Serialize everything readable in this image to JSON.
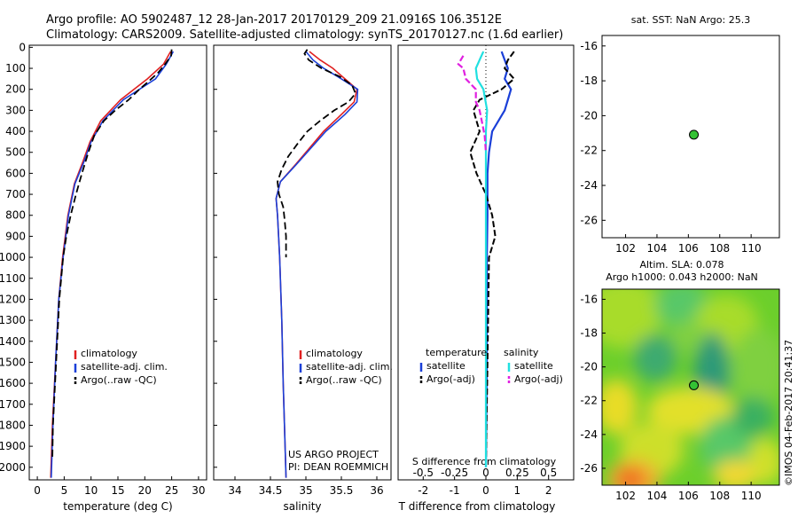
{
  "header": {
    "line1": "Argo profile: AO 5902487_12 28-Jan-2017 20170129_209 21.0916S 106.3512E",
    "line2": "Climatology: CARS2009. Satellite-adjusted climatology: synTS_20170127.nc (1.6d earlier)"
  },
  "footer_credit": "©IMOS 04-Feb-2017 20:41:37",
  "colors": {
    "climatology": "#e02020",
    "satellite": "#1a3fd8",
    "argo": "#000000",
    "sal_satellite": "#20e0e0",
    "sal_argo": "#e020e0",
    "marker": "#34c234"
  },
  "chart_data": [
    {
      "id": "temperature",
      "type": "line",
      "xlabel": "temperature (deg C)",
      "ylabel": "",
      "xlim": [
        -1.5,
        31.5
      ],
      "ylim": [
        2060,
        0
      ],
      "xticks": [
        "0",
        "5",
        "10",
        "15",
        "20",
        "25",
        "30"
      ],
      "yticks": [
        "0",
        "100",
        "200",
        "300",
        "400",
        "500",
        "600",
        "700",
        "800",
        "900",
        "1000",
        "1100",
        "1200",
        "1300",
        "1400",
        "1500",
        "1600",
        "1700",
        "1800",
        "1900",
        "2000"
      ],
      "legend": [
        "climatology",
        "satellite-adj. clim.",
        "Argo(..raw -QC)"
      ],
      "series": [
        {
          "name": "climatology",
          "depth": [
            20,
            80,
            150,
            250,
            350,
            450,
            550,
            650,
            800,
            1000,
            1200,
            1500,
            1800,
            2050
          ],
          "values": [
            24.8,
            23.5,
            20.5,
            15.5,
            11.8,
            9.8,
            8.4,
            6.9,
            5.7,
            4.7,
            4.0,
            3.4,
            2.8,
            2.5
          ]
        },
        {
          "name": "satellite-adj. clim.",
          "depth": [
            20,
            80,
            150,
            250,
            350,
            450,
            550,
            650,
            800,
            1000,
            1200,
            1500,
            1800,
            2050
          ],
          "values": [
            25.3,
            24.0,
            22.0,
            16.0,
            12.2,
            10.0,
            8.6,
            7.0,
            5.8,
            4.8,
            4.0,
            3.4,
            2.9,
            2.6
          ]
        },
        {
          "name": "Argo(..raw -QC)",
          "depth": [
            10,
            40,
            80,
            120,
            160,
            200,
            250,
            300,
            350,
            420,
            500,
            600,
            700,
            800,
            900,
            1000,
            1200,
            1500,
            1800,
            1950
          ],
          "values": [
            25.0,
            24.9,
            23.8,
            22.5,
            20.8,
            19.0,
            17.0,
            14.5,
            12.4,
            10.6,
            9.5,
            8.3,
            7.2,
            6.2,
            5.4,
            4.8,
            4.1,
            3.5,
            2.9,
            2.8
          ]
        }
      ]
    },
    {
      "id": "salinity",
      "type": "line",
      "xlabel": "salinity",
      "xlim": [
        33.7,
        36.2
      ],
      "ylim": [
        2060,
        0
      ],
      "xticks": [
        "34",
        "34.5",
        "35",
        "35.5",
        "36"
      ],
      "legend": [
        "climatology",
        "satellite-adj. clim.",
        "Argo(..raw -QC)"
      ],
      "annotation": [
        "US ARGO PROJECT",
        "PI: DEAN ROEMMICH"
      ],
      "series": [
        {
          "name": "climatology",
          "depth": [
            20,
            60,
            100,
            150,
            200,
            260,
            320,
            400,
            480,
            560,
            640,
            720,
            800,
            1000,
            1300,
            1600,
            2050
          ],
          "values": [
            35.05,
            35.2,
            35.38,
            35.55,
            35.72,
            35.68,
            35.5,
            35.25,
            35.05,
            34.85,
            34.64,
            34.58,
            34.6,
            34.63,
            34.66,
            34.68,
            34.72
          ]
        },
        {
          "name": "satellite-adj. clim.",
          "depth": [
            20,
            60,
            100,
            150,
            200,
            260,
            320,
            400,
            480,
            560,
            640,
            720,
            800,
            1000,
            1300,
            1600,
            2050
          ],
          "values": [
            35.0,
            35.1,
            35.25,
            35.5,
            35.73,
            35.72,
            35.55,
            35.28,
            35.07,
            34.86,
            34.64,
            34.58,
            34.6,
            34.63,
            34.66,
            34.68,
            34.72
          ]
        },
        {
          "name": "Argo(..raw -QC)",
          "depth": [
            10,
            30,
            60,
            100,
            140,
            180,
            220,
            260,
            300,
            350,
            400,
            460,
            520,
            580,
            640,
            700,
            760,
            820,
            900,
            1000
          ],
          "values": [
            35.02,
            34.98,
            35.04,
            35.22,
            35.48,
            35.65,
            35.7,
            35.6,
            35.4,
            35.2,
            35.02,
            34.88,
            34.75,
            34.66,
            34.6,
            34.62,
            34.68,
            34.7,
            34.72,
            34.72
          ]
        }
      ]
    },
    {
      "id": "difference",
      "type": "line",
      "xlabel": "T difference from climatology",
      "top_label": "S difference from climatology",
      "xlim": [
        -2.8,
        2.8
      ],
      "ylim": [
        2060,
        0
      ],
      "xticks": [
        "-2",
        "-1",
        "0",
        "1",
        "2"
      ],
      "top_ticks": [
        "-0.5",
        "-0.25",
        "0",
        "0.25",
        "0.5"
      ],
      "legend_left_title": "temperature",
      "legend_right_title": "salinity",
      "legend": [
        "satellite",
        "Argo(-adj)",
        "satellite",
        "Argo(-adj)"
      ],
      "series": [
        {
          "name": "T satellite",
          "depth": [
            20,
            60,
            100,
            150,
            200,
            250,
            300,
            400,
            500,
            600,
            800,
            1000,
            1500,
            2000
          ],
          "values": [
            0.5,
            0.6,
            0.7,
            0.6,
            0.8,
            0.7,
            0.6,
            0.2,
            0.1,
            0.05,
            0.05,
            0.03,
            0.03,
            0.0
          ]
        },
        {
          "name": "T Argo(-adj)",
          "depth": [
            20,
            60,
            100,
            150,
            200,
            250,
            300,
            400,
            500,
            600,
            700,
            800,
            900,
            1000,
            1500,
            2000
          ],
          "values": [
            0.9,
            0.7,
            0.6,
            0.9,
            0.5,
            -0.2,
            -0.4,
            -0.2,
            -0.5,
            -0.3,
            0.0,
            0.2,
            0.3,
            0.1,
            0.05,
            0.0
          ]
        },
        {
          "name": "S satellite",
          "depth": [
            20,
            60,
            100,
            150,
            200,
            300,
            400,
            600,
            800,
            1000,
            1500,
            2000
          ],
          "values": [
            -0.02,
            -0.05,
            -0.08,
            -0.07,
            -0.02,
            0.01,
            0.0,
            0.0,
            0.0,
            0.0,
            0.0,
            0.0
          ]
        },
        {
          "name": "S Argo(-adj)",
          "depth": [
            40,
            60,
            80,
            100,
            150,
            200,
            260,
            300,
            360,
            420,
            500
          ],
          "values": [
            -0.18,
            -0.2,
            -0.22,
            -0.18,
            -0.16,
            -0.08,
            -0.08,
            -0.05,
            -0.03,
            -0.01,
            0.0
          ]
        }
      ]
    },
    {
      "id": "sst_map",
      "type": "scatter",
      "title": "sat. SST: NaN Argo: 25.3",
      "xlim": [
        100.5,
        111.8
      ],
      "ylim": [
        -27,
        -15.4
      ],
      "xticks": [
        "102",
        "104",
        "106",
        "108",
        "110"
      ],
      "yticks": [
        "-16",
        "-18",
        "-20",
        "-22",
        "-24",
        "-26"
      ],
      "points": [
        {
          "x": 106.35,
          "y": -21.09
        }
      ]
    },
    {
      "id": "sla_map",
      "type": "heatmap",
      "title_line1": "Altim. SLA: 0.078",
      "title_line2": "Argo h1000: 0.043 h2000: NaN",
      "xlim": [
        100.5,
        111.8
      ],
      "ylim": [
        -27,
        -15.4
      ],
      "xticks": [
        "102",
        "104",
        "106",
        "108",
        "110"
      ],
      "yticks": [
        "-16",
        "-18",
        "-20",
        "-22",
        "-24",
        "-26"
      ],
      "points": [
        {
          "x": 106.35,
          "y": -21.09
        }
      ]
    }
  ]
}
